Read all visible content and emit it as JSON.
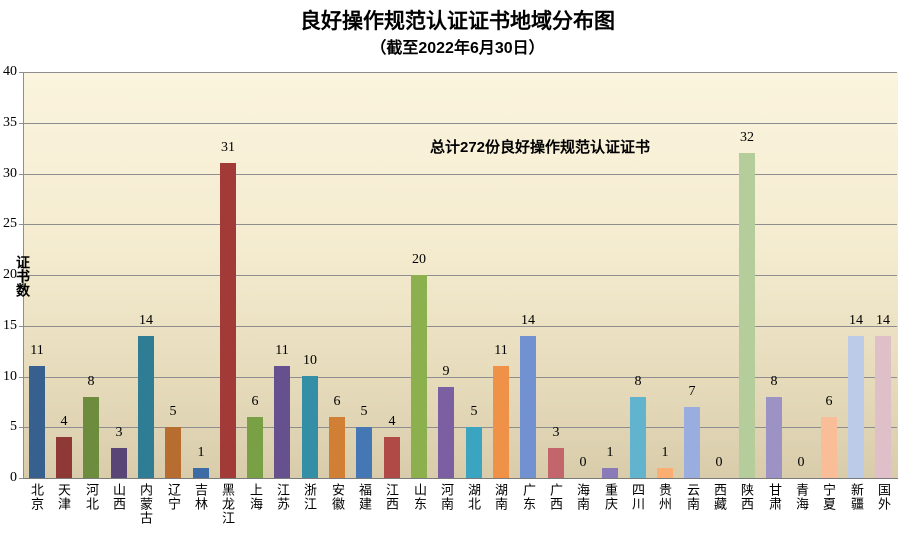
{
  "chart_data": {
    "type": "bar",
    "title": "良好操作规范认证证书地域分布图",
    "subtitle": "（截至2022年6月30日）",
    "annotation": "总计272份良好操作规范认证证书",
    "ylabel": "证书数",
    "ylim": [
      0,
      40
    ],
    "ytick_step": 5,
    "grid": true,
    "legend": "none",
    "total": 272,
    "categories": [
      "北京",
      "天津",
      "河北",
      "山西",
      "内蒙古",
      "辽宁",
      "吉林",
      "黑龙江",
      "上海",
      "江苏",
      "浙江",
      "安徽",
      "福建",
      "江西",
      "山东",
      "河南",
      "湖北",
      "湖南",
      "广东",
      "广西",
      "海南",
      "重庆",
      "四川",
      "贵州",
      "云南",
      "西藏",
      "陕西",
      "甘肃",
      "青海",
      "宁夏",
      "新疆",
      "国外"
    ],
    "values": [
      11,
      4,
      8,
      3,
      14,
      5,
      1,
      31,
      6,
      11,
      10,
      6,
      5,
      4,
      20,
      9,
      5,
      11,
      14,
      3,
      0,
      1,
      8,
      1,
      7,
      0,
      32,
      8,
      0,
      6,
      14,
      14
    ],
    "bar_colors": [
      "#38608F",
      "#8F3936",
      "#6E8C3E",
      "#594677",
      "#2E7D95",
      "#B76D30",
      "#3D6BA6",
      "#A23B38",
      "#7AA046",
      "#66508E",
      "#348EA6",
      "#D07F35",
      "#4577B5",
      "#B04A47",
      "#8CB04E",
      "#7C5FA2",
      "#3BA4C0",
      "#EF9146",
      "#7191D1",
      "#C2666C",
      "#A9C878",
      "#8A7AB8",
      "#62B4CE",
      "#FAAE71",
      "#99ADDF",
      "#CC8F93",
      "#B5CD9A",
      "#9C92C4",
      "#8FC6DB",
      "#F9BE98",
      "#BCCBE8",
      "#DFBFC8"
    ]
  },
  "colors": {
    "plot_bg_top": "#FBF4DE",
    "plot_bg_bottom": "#D8CCAB",
    "gridline": "#8E8E8E",
    "axis": "#7A7A7A",
    "text": "#000000",
    "page_bg": "#FFFFFF"
  }
}
